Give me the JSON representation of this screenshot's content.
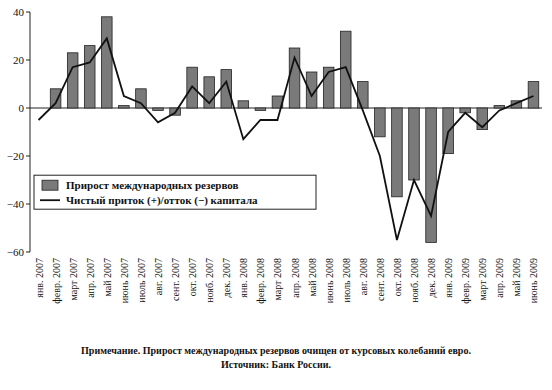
{
  "chart_data": {
    "type": "bar",
    "categories": [
      "янв. 2007",
      "февр. 2007",
      "март 2007",
      "апр. 2007",
      "май 2007",
      "июнь 2007",
      "июль 2007",
      "авг. 2007",
      "сент. 2007",
      "окт. 2007",
      "нояб. 2007",
      "дек. 2007",
      "янв. 2008",
      "февр. 2008",
      "март 2008",
      "апр. 2008",
      "май 2008",
      "июнь 2008",
      "июль 2008",
      "авг. 2008",
      "сент. 2008",
      "окт. 2008",
      "нояб. 2008",
      "дек. 2008",
      "янв. 2009",
      "февр. 2009",
      "март 2009",
      "апр. 2009",
      "май 2009",
      "июнь 2009"
    ],
    "series": [
      {
        "name": "Прирост международных резервов",
        "type": "bar",
        "color": "#7a7a7a",
        "values": [
          0,
          8,
          23,
          26,
          38,
          1,
          8,
          -1,
          -3,
          17,
          13,
          16,
          3,
          -1,
          5,
          25,
          15,
          17,
          32,
          11,
          -12,
          -37,
          -30,
          -56,
          -19,
          -2,
          -9,
          1,
          3,
          11
        ]
      },
      {
        "name": "Чистый приток (+)/отток (−) капитала",
        "type": "line",
        "color": "#111111",
        "line_style": "solid",
        "values": [
          -5,
          2,
          17,
          19,
          29,
          5,
          2,
          -6,
          -2,
          9,
          2,
          11,
          -13,
          -5,
          -5,
          21,
          5,
          15,
          17,
          -1,
          -20,
          -55,
          -30,
          -45,
          -10,
          -2,
          -8,
          -1,
          2,
          5
        ]
      }
    ],
    "ylim": [
      -60,
      40
    ],
    "yticks": [
      -60,
      -40,
      -20,
      0,
      20,
      40
    ],
    "legend": "lower left",
    "annotations": [
      "Примечание. Прирост международных резервов очищен от курсовых колебаний евро.",
      "Источник:  Банк России."
    ]
  }
}
